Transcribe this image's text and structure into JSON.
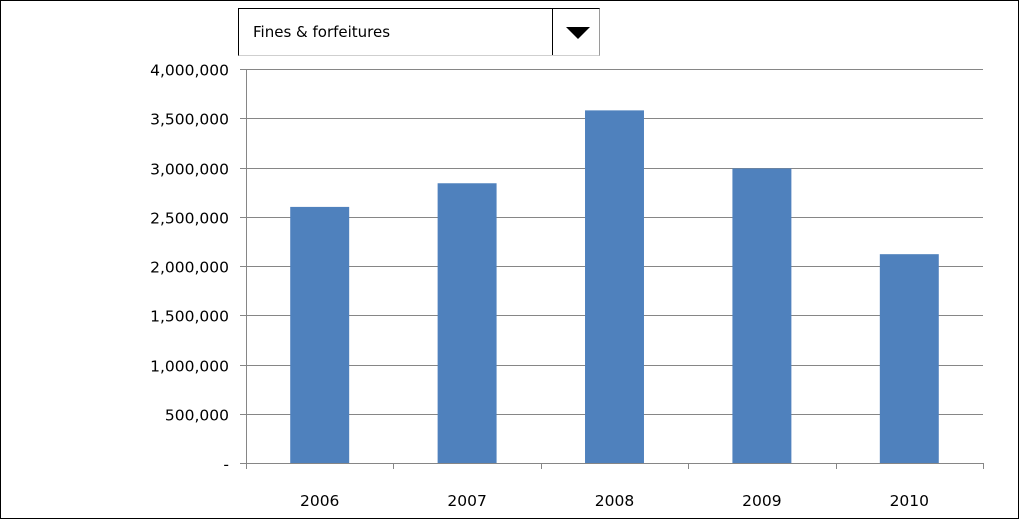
{
  "dropdown": {
    "selected": "Fines & forfeitures"
  },
  "chart_data": {
    "type": "bar",
    "categories": [
      "2006",
      "2007",
      "2008",
      "2009",
      "2010"
    ],
    "values": [
      2600000,
      2840000,
      3580000,
      2990000,
      2120000
    ],
    "ylim": [
      0,
      4000000
    ],
    "yticks": [
      0,
      500000,
      1000000,
      1500000,
      2000000,
      2500000,
      3000000,
      3500000,
      4000000
    ],
    "ytick_labels": [
      "-",
      "500,000",
      "1,000,000",
      "1,500,000",
      "2,000,000",
      "2,500,000",
      "3,000,000",
      "3,500,000",
      "4,000,000"
    ],
    "grid": true,
    "legend": "none",
    "colors": {
      "bar": "#4f81bd",
      "grid": "#868686",
      "axis": "#868686"
    }
  }
}
